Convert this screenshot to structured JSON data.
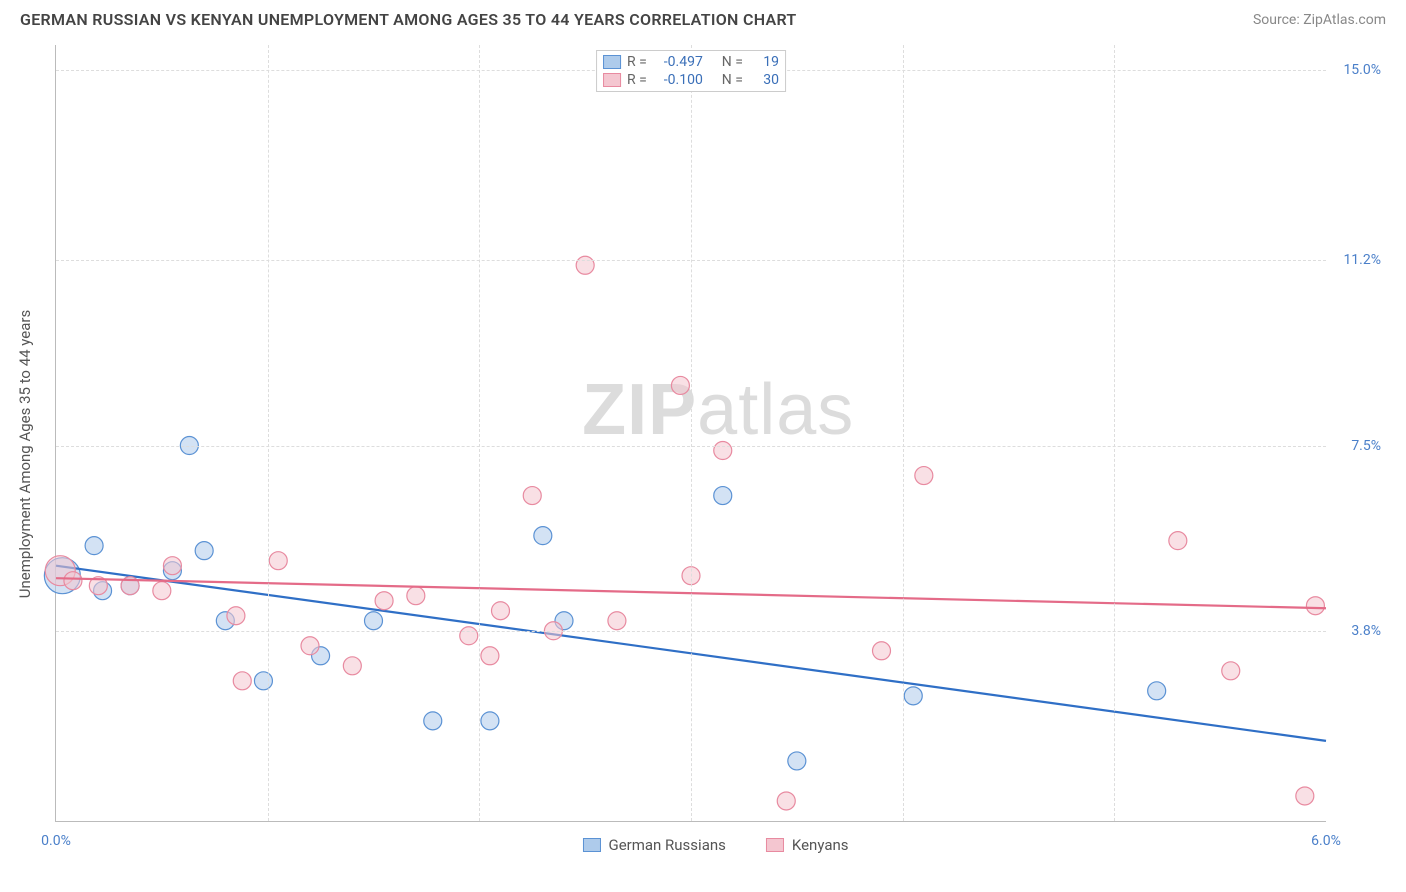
{
  "title": "GERMAN RUSSIAN VS KENYAN UNEMPLOYMENT AMONG AGES 35 TO 44 YEARS CORRELATION CHART",
  "source": "Source: ZipAtlas.com",
  "watermark_bold": "ZIP",
  "watermark_rest": "atlas",
  "y_axis_label": "Unemployment Among Ages 35 to 44 years",
  "chart": {
    "type": "scatter-with-regression",
    "background_color": "#ffffff",
    "grid_color": "#dddddd",
    "axis_color": "#bbbbbb",
    "xlim": [
      0.0,
      6.0
    ],
    "ylim": [
      0.0,
      15.5
    ],
    "x_ticks": [
      {
        "v": 0.0,
        "label": "0.0%"
      },
      {
        "v": 6.0,
        "label": "6.0%"
      }
    ],
    "y_ticks": [
      {
        "v": 3.8,
        "label": "3.8%"
      },
      {
        "v": 7.5,
        "label": "7.5%"
      },
      {
        "v": 11.2,
        "label": "11.2%"
      },
      {
        "v": 15.0,
        "label": "15.0%"
      }
    ],
    "x_grid": [
      1.0,
      2.0,
      3.0,
      4.0,
      5.0
    ],
    "y_grid": [
      3.8,
      7.5,
      11.2,
      15.0
    ],
    "series": [
      {
        "name": "German Russians",
        "fill": "#aecbeb",
        "stroke": "#5b92d4",
        "line_color": "#2f6fc6",
        "marker_r": 9,
        "R": "-0.497",
        "N": "19",
        "points": [
          [
            0.03,
            4.9,
            18
          ],
          [
            0.18,
            5.5,
            9
          ],
          [
            0.22,
            4.6,
            9
          ],
          [
            0.35,
            4.7,
            9
          ],
          [
            0.55,
            5.0,
            9
          ],
          [
            0.63,
            7.5,
            9
          ],
          [
            0.7,
            5.4,
            9
          ],
          [
            0.8,
            4.0,
            9
          ],
          [
            0.98,
            2.8,
            9
          ],
          [
            1.25,
            3.3,
            9
          ],
          [
            1.5,
            4.0,
            9
          ],
          [
            1.78,
            2.0,
            9
          ],
          [
            2.05,
            2.0,
            9
          ],
          [
            2.3,
            5.7,
            9
          ],
          [
            2.4,
            4.0,
            9
          ],
          [
            3.15,
            6.5,
            9
          ],
          [
            3.5,
            1.2,
            9
          ],
          [
            4.05,
            2.5,
            9
          ],
          [
            5.2,
            2.6,
            9
          ]
        ],
        "regression": {
          "y_at_x0": 5.1,
          "y_at_xmax": 1.6
        }
      },
      {
        "name": "Kenyans",
        "fill": "#f4c6d0",
        "stroke": "#e88aa0",
        "line_color": "#e46b88",
        "marker_r": 9,
        "R": "-0.100",
        "N": "30",
        "points": [
          [
            0.02,
            5.0,
            15
          ],
          [
            0.08,
            4.8,
            9
          ],
          [
            0.2,
            4.7,
            9
          ],
          [
            0.35,
            4.7,
            9
          ],
          [
            0.5,
            4.6,
            9
          ],
          [
            0.55,
            5.1,
            9
          ],
          [
            0.85,
            4.1,
            9
          ],
          [
            0.88,
            2.8,
            9
          ],
          [
            1.05,
            5.2,
            9
          ],
          [
            1.2,
            3.5,
            9
          ],
          [
            1.4,
            3.1,
            9
          ],
          [
            1.55,
            4.4,
            9
          ],
          [
            1.7,
            4.5,
            9
          ],
          [
            1.95,
            3.7,
            9
          ],
          [
            2.05,
            3.3,
            9
          ],
          [
            2.1,
            4.2,
            9
          ],
          [
            2.25,
            6.5,
            9
          ],
          [
            2.35,
            3.8,
            9
          ],
          [
            2.5,
            11.1,
            9
          ],
          [
            2.65,
            4.0,
            9
          ],
          [
            2.95,
            8.7,
            9
          ],
          [
            3.0,
            4.9,
            9
          ],
          [
            3.15,
            7.4,
            9
          ],
          [
            3.45,
            0.4,
            9
          ],
          [
            3.9,
            3.4,
            9
          ],
          [
            4.1,
            6.9,
            9
          ],
          [
            5.3,
            5.6,
            9
          ],
          [
            5.55,
            3.0,
            9
          ],
          [
            5.9,
            0.5,
            9
          ],
          [
            5.95,
            4.3,
            9
          ]
        ],
        "regression": {
          "y_at_x0": 4.85,
          "y_at_xmax": 4.25
        }
      }
    ],
    "legend_top_labels": {
      "R": "R =",
      "N": "N ="
    },
    "legend_bottom": [
      {
        "label": "German Russians",
        "fill": "#aecbeb",
        "stroke": "#5b92d4"
      },
      {
        "label": "Kenyans",
        "fill": "#f4c6d0",
        "stroke": "#e88aa0"
      }
    ],
    "axis_label_color": "#4a7fc9"
  }
}
